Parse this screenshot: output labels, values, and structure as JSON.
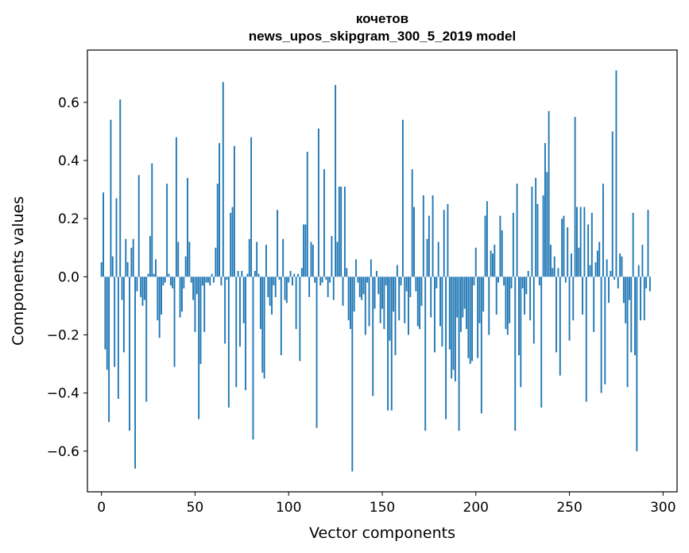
{
  "chart_data": {
    "type": "bar",
    "title_lines": [
      "кочетов",
      "news_upos_skipgram_300_5_2019 model"
    ],
    "xlabel": "Vector components",
    "ylabel": "Components values",
    "xlim": [
      -7.5,
      307.5
    ],
    "ylim": [
      -0.74,
      0.78
    ],
    "x_ticks": [
      0,
      50,
      100,
      150,
      200,
      250,
      300
    ],
    "y_ticks": [
      -0.6,
      -0.4,
      -0.2,
      0.0,
      0.2,
      0.4,
      0.6
    ],
    "y_tick_labels": [
      "−0.6",
      "−0.4",
      "−0.2",
      "0.0",
      "0.2",
      "0.4",
      "0.6"
    ],
    "grid": false,
    "bar_color": "#1f77b4",
    "values": [
      0.05,
      0.29,
      -0.25,
      -0.32,
      -0.5,
      0.54,
      0.07,
      -0.31,
      0.27,
      -0.42,
      0.61,
      -0.08,
      -0.26,
      0.13,
      0.05,
      -0.53,
      0.1,
      0.13,
      -0.66,
      -0.05,
      0.35,
      -0.07,
      -0.1,
      -0.08,
      -0.43,
      0.01,
      0.14,
      0.39,
      0.01,
      0.06,
      -0.15,
      -0.21,
      -0.13,
      -0.03,
      -0.02,
      0.32,
      0.01,
      -0.03,
      -0.04,
      -0.31,
      0.48,
      0.12,
      -0.14,
      -0.12,
      -0.04,
      0.07,
      0.34,
      0.12,
      -0.02,
      -0.08,
      -0.19,
      -0.06,
      -0.49,
      -0.3,
      -0.03,
      -0.19,
      -0.02,
      -0.02,
      -0.03,
      0.01,
      -0.02,
      0.1,
      0.32,
      0.46,
      -0.03,
      0.67,
      -0.23,
      -0.01,
      -0.45,
      0.22,
      0.24,
      0.45,
      -0.38,
      0.02,
      -0.24,
      0.02,
      -0.16,
      -0.39,
      0.01,
      0.13,
      0.48,
      -0.56,
      0.02,
      0.12,
      0.01,
      -0.18,
      -0.33,
      -0.35,
      0.11,
      -0.07,
      -0.1,
      -0.13,
      -0.03,
      -0.07,
      0.23,
      -0.01,
      -0.27,
      0.13,
      -0.08,
      -0.09,
      -0.02,
      0.02,
      -0.03,
      0.01,
      -0.18,
      0.01,
      -0.29,
      0.03,
      0.18,
      0.18,
      0.43,
      -0.07,
      0.12,
      0.11,
      -0.02,
      -0.52,
      0.51,
      -0.03,
      -0.02,
      0.37,
      -0.01,
      -0.07,
      -0.02,
      0.14,
      -0.08,
      0.66,
      0.12,
      0.31,
      0.31,
      -0.1,
      0.31,
      0.03,
      -0.15,
      -0.18,
      -0.67,
      -0.12,
      0.06,
      -0.02,
      -0.07,
      -0.08,
      -0.06,
      -0.2,
      -0.02,
      -0.17,
      0.06,
      -0.41,
      -0.11,
      0.02,
      -0.06,
      -0.16,
      -0.11,
      -0.18,
      -0.03,
      -0.46,
      -0.22,
      -0.46,
      -0.12,
      -0.27,
      0.04,
      -0.15,
      -0.03,
      0.54,
      -0.16,
      -0.05,
      -0.2,
      -0.07,
      0.37,
      0.24,
      -0.05,
      -0.17,
      -0.18,
      -0.1,
      0.28,
      -0.53,
      0.13,
      0.21,
      -0.14,
      0.28,
      -0.26,
      -0.04,
      0.12,
      -0.17,
      -0.24,
      0.23,
      -0.49,
      0.25,
      -0.25,
      -0.35,
      -0.32,
      -0.36,
      -0.14,
      -0.53,
      -0.19,
      -0.14,
      -0.11,
      -0.18,
      -0.28,
      -0.3,
      -0.29,
      -0.03,
      0.1,
      -0.28,
      -0.16,
      -0.47,
      -0.12,
      0.21,
      0.26,
      -0.2,
      0.09,
      0.08,
      0.11,
      -0.13,
      -0.02,
      0.21,
      0.16,
      -0.03,
      -0.18,
      -0.2,
      -0.16,
      -0.04,
      0.22,
      -0.53,
      0.32,
      -0.27,
      -0.38,
      -0.04,
      -0.13,
      -0.06,
      0.02,
      -0.15,
      0.31,
      -0.23,
      0.34,
      0.25,
      -0.03,
      -0.45,
      0.28,
      0.46,
      0.36,
      0.57,
      0.11,
      0.03,
      0.07,
      -0.26,
      0.03,
      -0.34,
      0.2,
      0.21,
      -0.02,
      0.17,
      -0.22,
      0.08,
      -0.15,
      0.55,
      0.24,
      0.1,
      0.24,
      -0.13,
      0.24,
      -0.43,
      0.18,
      0.04,
      0.22,
      -0.19,
      0.05,
      0.09,
      0.12,
      -0.4,
      0.32,
      -0.37,
      0.06,
      -0.09,
      0.02,
      0.5,
      -0.01,
      0.71,
      -0.04,
      0.08,
      0.07,
      -0.09,
      -0.16,
      -0.38,
      -0.08,
      -0.26,
      0.22,
      -0.27,
      -0.6,
      0.04,
      -0.15,
      0.11,
      -0.15,
      -0.04,
      0.23,
      -0.05
    ]
  }
}
